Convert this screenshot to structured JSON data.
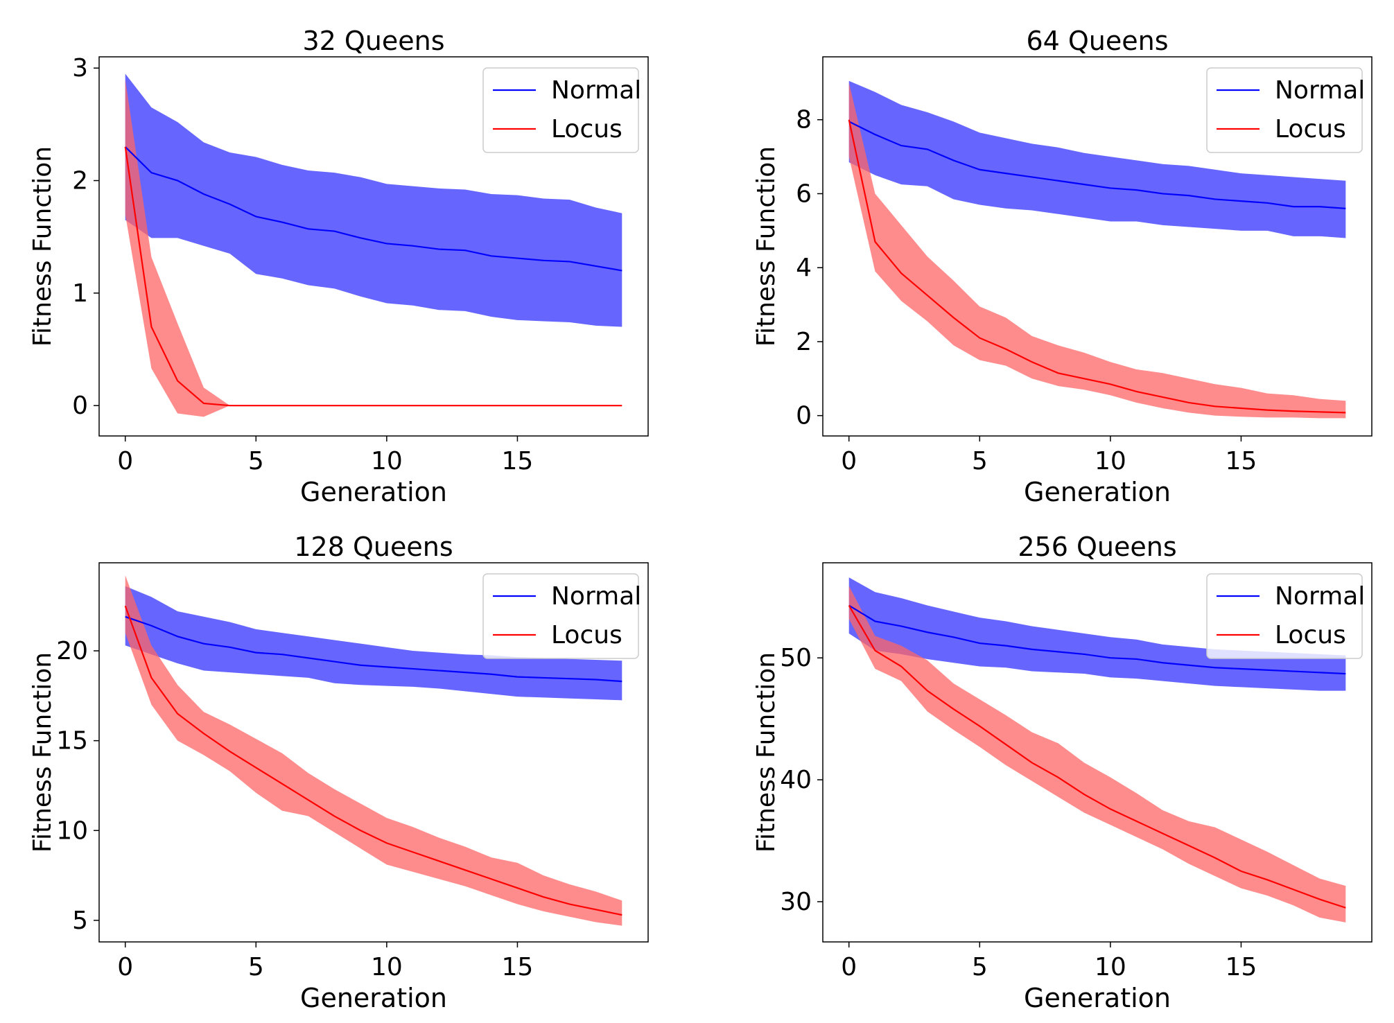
{
  "colors": {
    "normal_line": "#0000ff",
    "normal_band": "#6666ff",
    "locus_line": "#ff0000",
    "locus_band": "#ff6666",
    "overlap_band": "#7b2e9b"
  },
  "chart_data": [
    {
      "type": "line",
      "title": "32 Queens",
      "xlabel": "Generation",
      "ylabel": "Fitness Function",
      "xlim": [
        -1,
        20
      ],
      "ylim": [
        -0.27,
        3.1
      ],
      "xticks": [
        0,
        5,
        10,
        15
      ],
      "yticks": [
        0,
        1,
        2,
        3
      ],
      "grid": false,
      "legend": "top-right",
      "x": [
        0,
        1,
        2,
        3,
        4,
        5,
        6,
        7,
        8,
        9,
        10,
        11,
        12,
        13,
        14,
        15,
        16,
        17,
        18,
        19
      ],
      "series": [
        {
          "name": "Normal",
          "color": "#0000ff",
          "band_color": "#6666ff",
          "values": [
            2.3,
            2.07,
            2.0,
            1.88,
            1.79,
            1.68,
            1.63,
            1.57,
            1.55,
            1.49,
            1.44,
            1.42,
            1.39,
            1.38,
            1.33,
            1.31,
            1.29,
            1.28,
            1.24,
            1.2
          ],
          "lower": [
            1.65,
            1.49,
            1.49,
            1.42,
            1.35,
            1.17,
            1.13,
            1.07,
            1.04,
            0.97,
            0.91,
            0.89,
            0.85,
            0.84,
            0.79,
            0.76,
            0.75,
            0.74,
            0.71,
            0.7
          ],
          "upper": [
            2.95,
            2.65,
            2.52,
            2.34,
            2.25,
            2.21,
            2.14,
            2.09,
            2.07,
            2.03,
            1.97,
            1.95,
            1.93,
            1.92,
            1.88,
            1.87,
            1.84,
            1.83,
            1.76,
            1.71
          ]
        },
        {
          "name": "Locus",
          "color": "#ff0000",
          "band_color": "#ff6666",
          "values": [
            2.3,
            0.7,
            0.22,
            0.02,
            0,
            0,
            0,
            0,
            0,
            0,
            0,
            0,
            0,
            0,
            0,
            0,
            0,
            0,
            0,
            0
          ],
          "lower": [
            1.7,
            0.33,
            -0.07,
            -0.1,
            0,
            0,
            0,
            0,
            0,
            0,
            0,
            0,
            0,
            0,
            0,
            0,
            0,
            0,
            0,
            0
          ],
          "upper": [
            2.9,
            1.32,
            0.73,
            0.16,
            0,
            0,
            0,
            0,
            0,
            0,
            0,
            0,
            0,
            0,
            0,
            0,
            0,
            0,
            0,
            0
          ]
        }
      ]
    },
    {
      "type": "line",
      "title": "64 Queens",
      "xlabel": "Generation",
      "ylabel": "Fitness Function",
      "xlim": [
        -1,
        20
      ],
      "ylim": [
        -0.55,
        9.7
      ],
      "xticks": [
        0,
        5,
        10,
        15
      ],
      "yticks": [
        0,
        2,
        4,
        6,
        8
      ],
      "grid": false,
      "legend": "top-right",
      "x": [
        0,
        1,
        2,
        3,
        4,
        5,
        6,
        7,
        8,
        9,
        10,
        11,
        12,
        13,
        14,
        15,
        16,
        17,
        18,
        19
      ],
      "series": [
        {
          "name": "Normal",
          "color": "#0000ff",
          "band_color": "#6666ff",
          "values": [
            7.95,
            7.6,
            7.3,
            7.2,
            6.9,
            6.65,
            6.55,
            6.45,
            6.35,
            6.25,
            6.15,
            6.1,
            6.0,
            5.95,
            5.85,
            5.8,
            5.75,
            5.65,
            5.65,
            5.6
          ],
          "lower": [
            6.85,
            6.5,
            6.25,
            6.2,
            5.85,
            5.7,
            5.6,
            5.55,
            5.45,
            5.35,
            5.25,
            5.25,
            5.15,
            5.1,
            5.05,
            5.0,
            5.0,
            4.85,
            4.85,
            4.8
          ],
          "upper": [
            9.05,
            8.75,
            8.4,
            8.2,
            7.95,
            7.65,
            7.5,
            7.35,
            7.25,
            7.1,
            7.0,
            6.9,
            6.8,
            6.75,
            6.65,
            6.55,
            6.5,
            6.45,
            6.4,
            6.35
          ]
        },
        {
          "name": "Locus",
          "color": "#ff0000",
          "band_color": "#ff6666",
          "values": [
            8.0,
            4.7,
            3.85,
            3.25,
            2.65,
            2.1,
            1.8,
            1.45,
            1.15,
            1.0,
            0.85,
            0.65,
            0.5,
            0.35,
            0.25,
            0.2,
            0.15,
            0.12,
            0.1,
            0.08
          ],
          "lower": [
            7.0,
            3.9,
            3.1,
            2.55,
            1.9,
            1.5,
            1.35,
            1.0,
            0.8,
            0.7,
            0.55,
            0.35,
            0.2,
            0.08,
            0.0,
            -0.03,
            -0.05,
            -0.05,
            -0.07,
            -0.07
          ],
          "upper": [
            9.0,
            6.0,
            5.15,
            4.3,
            3.65,
            2.95,
            2.65,
            2.15,
            1.9,
            1.7,
            1.45,
            1.25,
            1.15,
            1.0,
            0.85,
            0.75,
            0.6,
            0.55,
            0.45,
            0.4
          ]
        }
      ]
    },
    {
      "type": "line",
      "title": "128 Queens",
      "xlabel": "Generation",
      "ylabel": "Fitness Function",
      "xlim": [
        -1,
        20
      ],
      "ylim": [
        3.8,
        24.9
      ],
      "xticks": [
        0,
        5,
        10,
        15
      ],
      "yticks": [
        5,
        10,
        15,
        20
      ],
      "grid": false,
      "legend": "top-right",
      "x": [
        0,
        1,
        2,
        3,
        4,
        5,
        6,
        7,
        8,
        9,
        10,
        11,
        12,
        13,
        14,
        15,
        16,
        17,
        18,
        19
      ],
      "series": [
        {
          "name": "Normal",
          "color": "#0000ff",
          "band_color": "#6666ff",
          "values": [
            21.9,
            21.4,
            20.8,
            20.4,
            20.2,
            19.9,
            19.8,
            19.6,
            19.4,
            19.2,
            19.1,
            19.0,
            18.9,
            18.8,
            18.7,
            18.55,
            18.5,
            18.45,
            18.4,
            18.3
          ],
          "lower": [
            20.3,
            19.8,
            19.3,
            18.9,
            18.8,
            18.7,
            18.6,
            18.5,
            18.2,
            18.1,
            18.05,
            18.0,
            17.9,
            17.75,
            17.6,
            17.45,
            17.4,
            17.35,
            17.3,
            17.25
          ],
          "upper": [
            23.6,
            23.0,
            22.2,
            21.9,
            21.6,
            21.2,
            21.0,
            20.8,
            20.6,
            20.4,
            20.2,
            20.0,
            19.9,
            19.8,
            19.75,
            19.65,
            19.6,
            19.55,
            19.5,
            19.45
          ]
        },
        {
          "name": "Locus",
          "color": "#ff0000",
          "band_color": "#ff6666",
          "values": [
            22.5,
            18.5,
            16.5,
            15.4,
            14.4,
            13.5,
            12.6,
            11.7,
            10.8,
            10.0,
            9.3,
            8.8,
            8.3,
            7.8,
            7.3,
            6.8,
            6.3,
            5.9,
            5.6,
            5.3
          ],
          "lower": [
            21.0,
            17.0,
            15.0,
            14.2,
            13.3,
            12.1,
            11.1,
            10.8,
            9.9,
            9.0,
            8.1,
            7.7,
            7.3,
            6.9,
            6.4,
            5.9,
            5.5,
            5.2,
            4.9,
            4.7
          ],
          "upper": [
            24.2,
            20.3,
            18.1,
            16.6,
            15.9,
            15.1,
            14.3,
            13.2,
            12.3,
            11.5,
            10.7,
            10.2,
            9.6,
            9.1,
            8.5,
            8.2,
            7.5,
            7.0,
            6.6,
            6.1
          ]
        }
      ]
    },
    {
      "type": "line",
      "title": "256 Queens",
      "xlabel": "Generation",
      "ylabel": "Fitness Function",
      "xlim": [
        -1,
        20
      ],
      "ylim": [
        26.7,
        57.8
      ],
      "xticks": [
        0,
        5,
        10,
        15
      ],
      "yticks": [
        30,
        40,
        50
      ],
      "grid": false,
      "legend": "top-right",
      "x": [
        0,
        1,
        2,
        3,
        4,
        5,
        6,
        7,
        8,
        9,
        10,
        11,
        12,
        13,
        14,
        15,
        16,
        17,
        18,
        19
      ],
      "series": [
        {
          "name": "Normal",
          "color": "#0000ff",
          "band_color": "#6666ff",
          "values": [
            54.3,
            53.0,
            52.6,
            52.1,
            51.7,
            51.2,
            51.0,
            50.7,
            50.5,
            50.3,
            50.0,
            49.9,
            49.6,
            49.4,
            49.2,
            49.1,
            49.0,
            48.9,
            48.8,
            48.7
          ],
          "lower": [
            52.0,
            50.6,
            50.3,
            49.9,
            49.6,
            49.3,
            49.2,
            48.9,
            48.8,
            48.7,
            48.4,
            48.3,
            48.1,
            47.9,
            47.7,
            47.6,
            47.5,
            47.4,
            47.3,
            47.3
          ],
          "upper": [
            56.6,
            55.4,
            54.9,
            54.3,
            53.8,
            53.3,
            53.0,
            52.6,
            52.3,
            52.0,
            51.7,
            51.5,
            51.1,
            50.9,
            50.7,
            50.6,
            50.5,
            50.4,
            50.3,
            50.2
          ]
        },
        {
          "name": "Locus",
          "color": "#ff0000",
          "band_color": "#ff6666",
          "values": [
            54.3,
            50.6,
            49.3,
            47.3,
            45.8,
            44.4,
            42.9,
            41.4,
            40.2,
            38.8,
            37.6,
            36.6,
            35.6,
            34.6,
            33.6,
            32.5,
            31.8,
            31.0,
            30.2,
            29.5
          ],
          "lower": [
            53.2,
            49.1,
            48.1,
            45.6,
            44.1,
            42.7,
            41.2,
            39.9,
            38.6,
            37.3,
            36.3,
            35.3,
            34.3,
            33.1,
            32.1,
            31.1,
            30.5,
            29.7,
            28.7,
            28.3
          ],
          "upper": [
            55.9,
            51.8,
            51.0,
            49.8,
            47.9,
            46.6,
            45.3,
            43.9,
            43.0,
            41.4,
            40.2,
            38.9,
            37.5,
            36.6,
            36.1,
            35.1,
            34.1,
            33.0,
            31.9,
            31.3
          ]
        }
      ]
    }
  ]
}
